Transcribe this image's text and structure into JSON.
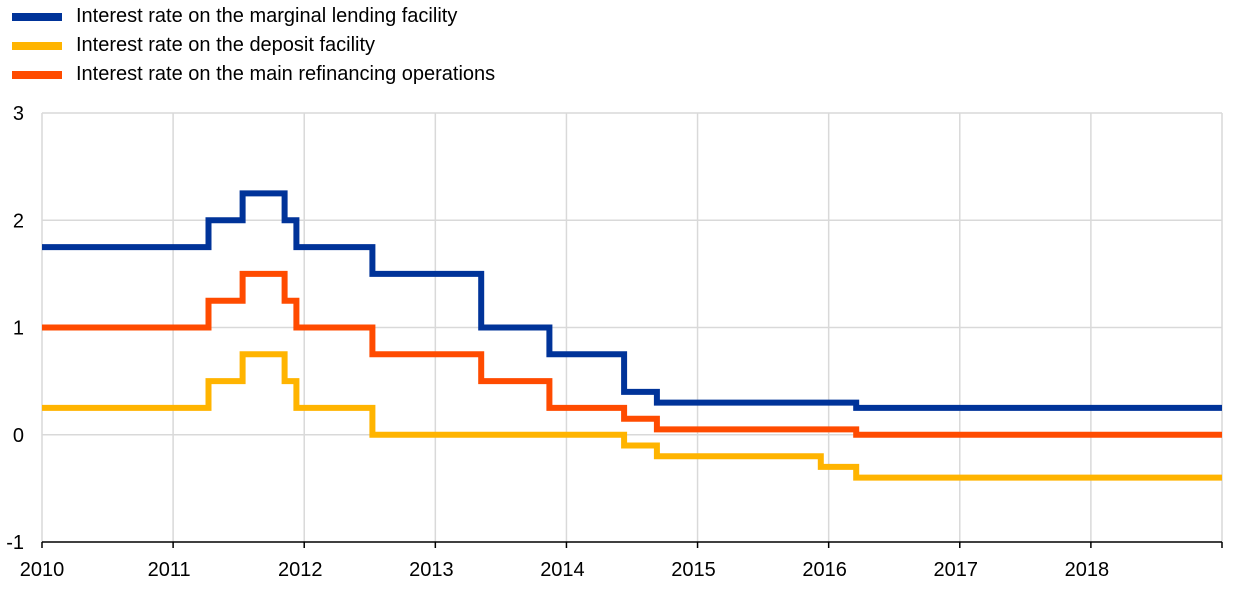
{
  "chart_data": {
    "type": "line",
    "step": true,
    "title": "",
    "xlabel": "",
    "ylabel": "",
    "xlim": [
      2010,
      2019
    ],
    "ylim": [
      -1,
      3
    ],
    "x_ticks": [
      "2010",
      "2011",
      "2012",
      "2013",
      "2014",
      "2015",
      "2016",
      "2017",
      "2018"
    ],
    "y_ticks": [
      "3",
      "2",
      "1",
      "0",
      "-1"
    ],
    "grid": true,
    "legend_position": "top-left",
    "series": [
      {
        "name": "Interest rate on the marginal lending facility",
        "color": "#003399",
        "points": [
          [
            2010.0,
            1.75
          ],
          [
            2011.27,
            1.75
          ],
          [
            2011.27,
            2.0
          ],
          [
            2011.53,
            2.0
          ],
          [
            2011.53,
            2.25
          ],
          [
            2011.85,
            2.25
          ],
          [
            2011.85,
            2.0
          ],
          [
            2011.94,
            2.0
          ],
          [
            2011.94,
            1.75
          ],
          [
            2012.52,
            1.75
          ],
          [
            2012.52,
            1.5
          ],
          [
            2013.35,
            1.5
          ],
          [
            2013.35,
            1.0
          ],
          [
            2013.87,
            1.0
          ],
          [
            2013.87,
            0.75
          ],
          [
            2014.44,
            0.75
          ],
          [
            2014.44,
            0.4
          ],
          [
            2014.69,
            0.4
          ],
          [
            2014.69,
            0.3
          ],
          [
            2016.21,
            0.3
          ],
          [
            2016.21,
            0.25
          ],
          [
            2019.0,
            0.25
          ]
        ]
      },
      {
        "name": "Interest rate on the deposit facility",
        "color": "#FFB400",
        "points": [
          [
            2010.0,
            0.25
          ],
          [
            2011.27,
            0.25
          ],
          [
            2011.27,
            0.5
          ],
          [
            2011.53,
            0.5
          ],
          [
            2011.53,
            0.75
          ],
          [
            2011.85,
            0.75
          ],
          [
            2011.85,
            0.5
          ],
          [
            2011.94,
            0.5
          ],
          [
            2011.94,
            0.25
          ],
          [
            2012.52,
            0.25
          ],
          [
            2012.52,
            0.0
          ],
          [
            2014.44,
            0.0
          ],
          [
            2014.44,
            -0.1
          ],
          [
            2014.69,
            -0.1
          ],
          [
            2014.69,
            -0.2
          ],
          [
            2015.94,
            -0.2
          ],
          [
            2015.94,
            -0.3
          ],
          [
            2016.21,
            -0.3
          ],
          [
            2016.21,
            -0.4
          ],
          [
            2019.0,
            -0.4
          ]
        ]
      },
      {
        "name": "Interest rate on the main refinancing operations",
        "color": "#FF4B00",
        "points": [
          [
            2010.0,
            1.0
          ],
          [
            2011.27,
            1.0
          ],
          [
            2011.27,
            1.25
          ],
          [
            2011.53,
            1.25
          ],
          [
            2011.53,
            1.5
          ],
          [
            2011.85,
            1.5
          ],
          [
            2011.85,
            1.25
          ],
          [
            2011.94,
            1.25
          ],
          [
            2011.94,
            1.0
          ],
          [
            2012.52,
            1.0
          ],
          [
            2012.52,
            0.75
          ],
          [
            2013.35,
            0.75
          ],
          [
            2013.35,
            0.5
          ],
          [
            2013.87,
            0.5
          ],
          [
            2013.87,
            0.25
          ],
          [
            2014.44,
            0.25
          ],
          [
            2014.44,
            0.15
          ],
          [
            2014.69,
            0.15
          ],
          [
            2014.69,
            0.05
          ],
          [
            2016.21,
            0.05
          ],
          [
            2016.21,
            0.0
          ],
          [
            2019.0,
            0.0
          ]
        ]
      }
    ]
  }
}
